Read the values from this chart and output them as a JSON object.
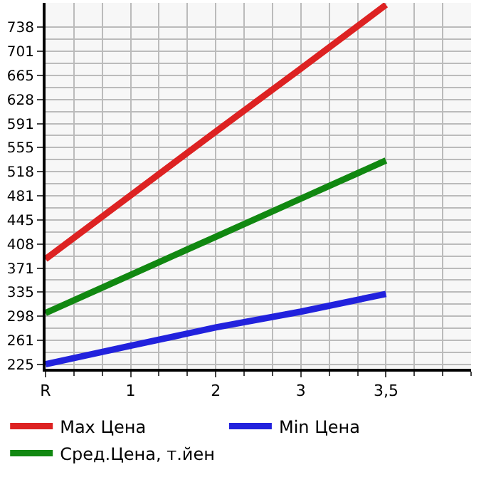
{
  "chart_data": {
    "type": "line",
    "categories": [
      "R",
      "1",
      "2",
      "3",
      "3,5"
    ],
    "series": [
      {
        "name": "Max Цена",
        "color": "#dd2222",
        "values": [
          385,
          482,
          579,
          675,
          772
        ]
      },
      {
        "name": "Min Цена",
        "color": "#2222dd",
        "values": [
          225,
          253,
          281,
          305,
          332
        ]
      },
      {
        "name": "Сред.Цена, т.йен",
        "color": "#118811",
        "values": [
          303,
          361,
          419,
          477,
          535
        ]
      }
    ],
    "ylim": [
      218,
      775
    ],
    "yticks": [
      225,
      261,
      298,
      335,
      371,
      408,
      445,
      481,
      518,
      555,
      591,
      628,
      665,
      701,
      738
    ],
    "grid": true,
    "legend": "bottom",
    "marker": "none",
    "line_style": "solid"
  }
}
